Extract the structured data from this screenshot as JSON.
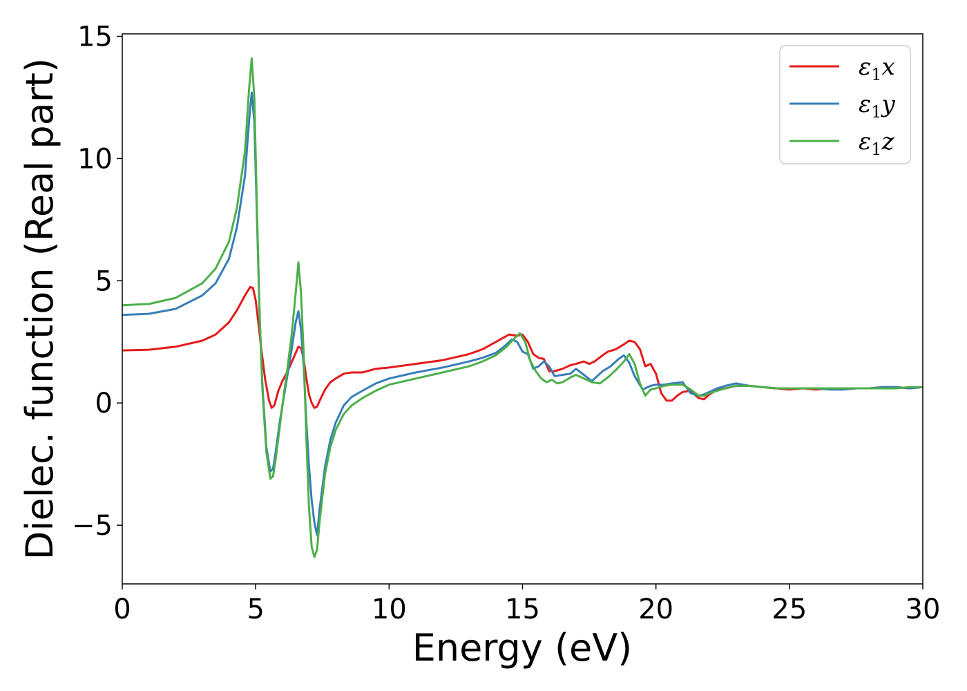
{
  "chart_data": {
    "type": "line",
    "title": "",
    "xlabel": "Energy (eV)",
    "ylabel": "Dielec. function (Real part)",
    "xlim": [
      0,
      30
    ],
    "ylim": [
      -7.4,
      15.1
    ],
    "xticks": [
      0,
      5,
      10,
      15,
      20,
      25,
      30
    ],
    "yticks": [
      -5,
      0,
      5,
      10,
      15
    ],
    "grid": false,
    "legend_position": "top-right",
    "series": [
      {
        "name": "ε1x",
        "legend_base": "ε",
        "legend_sub": "1",
        "legend_suffix": "x",
        "color": "#e41a1c",
        "x": [
          0,
          1,
          2,
          3,
          3.5,
          4,
          4.3,
          4.6,
          4.8,
          4.9,
          5.0,
          5.1,
          5.2,
          5.35,
          5.5,
          5.6,
          5.7,
          5.85,
          6.0,
          6.2,
          6.4,
          6.6,
          6.7,
          6.8,
          6.9,
          7.0,
          7.1,
          7.2,
          7.3,
          7.4,
          7.6,
          7.8,
          8.0,
          8.3,
          8.6,
          9.0,
          9.5,
          10,
          11,
          12,
          13,
          13.5,
          14,
          14.5,
          14.8,
          15.0,
          15.2,
          15.4,
          15.6,
          15.8,
          16.0,
          16.2,
          16.5,
          16.8,
          17.0,
          17.3,
          17.5,
          17.7,
          18.0,
          18.2,
          18.5,
          18.8,
          19.0,
          19.2,
          19.4,
          19.6,
          19.8,
          20.0,
          20.2,
          20.4,
          20.6,
          20.8,
          21.0,
          21.3,
          21.6,
          21.8,
          22.0,
          22.3,
          22.6,
          23.0,
          23.5,
          24.0,
          24.5,
          25.0,
          25.5,
          26.0,
          26.5,
          27.0,
          27.5,
          28.0,
          28.5,
          29.0,
          29.5,
          30.0
        ],
        "y": [
          2.15,
          2.18,
          2.3,
          2.55,
          2.8,
          3.3,
          3.8,
          4.4,
          4.75,
          4.7,
          4.2,
          3.3,
          2.3,
          1.0,
          0.1,
          -0.2,
          -0.1,
          0.5,
          0.9,
          1.3,
          1.8,
          2.3,
          2.25,
          1.8,
          1.0,
          0.35,
          0.0,
          -0.2,
          -0.15,
          0.1,
          0.55,
          0.85,
          1.0,
          1.2,
          1.25,
          1.25,
          1.4,
          1.45,
          1.6,
          1.75,
          2.0,
          2.2,
          2.5,
          2.8,
          2.75,
          2.8,
          2.5,
          2.0,
          1.85,
          1.8,
          1.3,
          1.3,
          1.4,
          1.55,
          1.6,
          1.7,
          1.6,
          1.7,
          1.95,
          2.1,
          2.2,
          2.4,
          2.55,
          2.5,
          2.2,
          1.5,
          1.6,
          1.2,
          0.4,
          0.1,
          0.1,
          0.3,
          0.45,
          0.5,
          0.2,
          0.15,
          0.35,
          0.55,
          0.6,
          0.7,
          0.7,
          0.65,
          0.6,
          0.55,
          0.6,
          0.55,
          0.6,
          0.55,
          0.6,
          0.6,
          0.65,
          0.65,
          0.6,
          0.65
        ]
      },
      {
        "name": "ε1y",
        "legend_base": "ε",
        "legend_sub": "1",
        "legend_suffix": "y",
        "color": "#377eb8",
        "x": [
          0,
          1,
          2,
          3,
          3.5,
          4,
          4.3,
          4.6,
          4.75,
          4.85,
          4.95,
          5.05,
          5.15,
          5.25,
          5.4,
          5.55,
          5.65,
          5.75,
          5.9,
          6.05,
          6.2,
          6.35,
          6.5,
          6.6,
          6.7,
          6.8,
          6.9,
          7.0,
          7.1,
          7.2,
          7.3,
          7.4,
          7.6,
          7.8,
          8.0,
          8.3,
          8.6,
          9.0,
          9.5,
          10,
          11,
          12,
          13,
          13.5,
          14,
          14.3,
          14.6,
          14.8,
          15.0,
          15.2,
          15.4,
          15.6,
          15.8,
          16.0,
          16.2,
          16.5,
          16.8,
          17.0,
          17.3,
          17.6,
          17.8,
          18.0,
          18.3,
          18.6,
          18.8,
          19.0,
          19.2,
          19.5,
          19.8,
          20.0,
          20.3,
          20.6,
          21.0,
          21.3,
          21.6,
          21.8,
          22.0,
          22.3,
          22.6,
          23.0,
          23.5,
          24.0,
          24.5,
          25.0,
          25.5,
          26.0,
          26.5,
          27.0,
          27.5,
          28.0,
          28.5,
          29.0,
          29.5,
          30.0
        ],
        "y": [
          3.6,
          3.65,
          3.85,
          4.4,
          4.9,
          5.9,
          7.2,
          9.3,
          11.5,
          12.7,
          11.5,
          7.5,
          3.5,
          0.8,
          -1.8,
          -2.8,
          -2.7,
          -2.0,
          -0.8,
          0.2,
          1.2,
          2.2,
          3.3,
          3.75,
          3.0,
          1.5,
          -0.8,
          -2.6,
          -4.0,
          -4.9,
          -5.4,
          -4.3,
          -2.6,
          -1.5,
          -0.8,
          -0.1,
          0.25,
          0.5,
          0.8,
          1.0,
          1.25,
          1.45,
          1.7,
          1.85,
          2.05,
          2.3,
          2.6,
          2.5,
          2.1,
          2.0,
          1.4,
          1.5,
          1.7,
          1.5,
          1.1,
          1.15,
          1.2,
          1.4,
          1.15,
          0.9,
          1.1,
          1.3,
          1.5,
          1.8,
          1.95,
          1.65,
          1.1,
          0.55,
          0.7,
          0.75,
          0.75,
          0.8,
          0.85,
          0.4,
          0.3,
          0.35,
          0.45,
          0.6,
          0.7,
          0.8,
          0.7,
          0.65,
          0.6,
          0.6,
          0.6,
          0.6,
          0.55,
          0.55,
          0.6,
          0.6,
          0.65,
          0.65,
          0.6,
          0.65
        ]
      },
      {
        "name": "ε1z",
        "legend_base": "ε",
        "legend_sub": "1",
        "legend_suffix": "z",
        "color": "#4daf4a",
        "x": [
          0,
          1,
          2,
          3,
          3.5,
          4,
          4.3,
          4.6,
          4.75,
          4.85,
          4.95,
          5.05,
          5.15,
          5.25,
          5.4,
          5.55,
          5.65,
          5.75,
          5.9,
          6.05,
          6.2,
          6.35,
          6.5,
          6.6,
          6.7,
          6.8,
          6.9,
          7.0,
          7.1,
          7.2,
          7.3,
          7.4,
          7.6,
          7.8,
          8.0,
          8.3,
          8.6,
          9.0,
          9.5,
          10,
          11,
          12,
          13,
          13.5,
          14,
          14.4,
          14.7,
          14.9,
          15.1,
          15.3,
          15.5,
          15.7,
          15.9,
          16.1,
          16.3,
          16.5,
          16.8,
          17.0,
          17.3,
          17.6,
          17.9,
          18.2,
          18.5,
          18.8,
          19.0,
          19.2,
          19.4,
          19.6,
          19.8,
          20.0,
          20.3,
          20.6,
          21.0,
          21.3,
          21.6,
          21.8,
          22.0,
          22.3,
          22.6,
          23.0,
          23.5,
          24.0,
          24.5,
          25.0,
          25.5,
          26.0,
          26.5,
          27.0,
          27.5,
          28.0,
          28.5,
          29.0,
          29.5,
          30.0
        ],
        "y": [
          4.0,
          4.05,
          4.3,
          4.9,
          5.5,
          6.6,
          8.0,
          10.3,
          12.8,
          14.1,
          12.5,
          7.8,
          3.5,
          0.6,
          -2.0,
          -3.1,
          -3.0,
          -2.3,
          -1.0,
          0.3,
          1.5,
          2.8,
          4.5,
          5.75,
          4.5,
          2.0,
          -1.5,
          -4.3,
          -5.9,
          -6.3,
          -6.0,
          -4.8,
          -2.9,
          -1.8,
          -1.1,
          -0.45,
          -0.1,
          0.2,
          0.5,
          0.75,
          1.0,
          1.25,
          1.5,
          1.7,
          1.95,
          2.3,
          2.65,
          2.85,
          2.5,
          1.7,
          1.3,
          1.0,
          0.85,
          0.95,
          0.8,
          0.85,
          1.05,
          1.15,
          1.0,
          0.85,
          0.8,
          1.05,
          1.35,
          1.7,
          2.0,
          1.6,
          0.8,
          0.3,
          0.55,
          0.6,
          0.7,
          0.75,
          0.75,
          0.55,
          0.3,
          0.3,
          0.4,
          0.5,
          0.6,
          0.7,
          0.7,
          0.65,
          0.6,
          0.6,
          0.6,
          0.6,
          0.6,
          0.6,
          0.6,
          0.6,
          0.6,
          0.6,
          0.65,
          0.65
        ]
      }
    ]
  }
}
